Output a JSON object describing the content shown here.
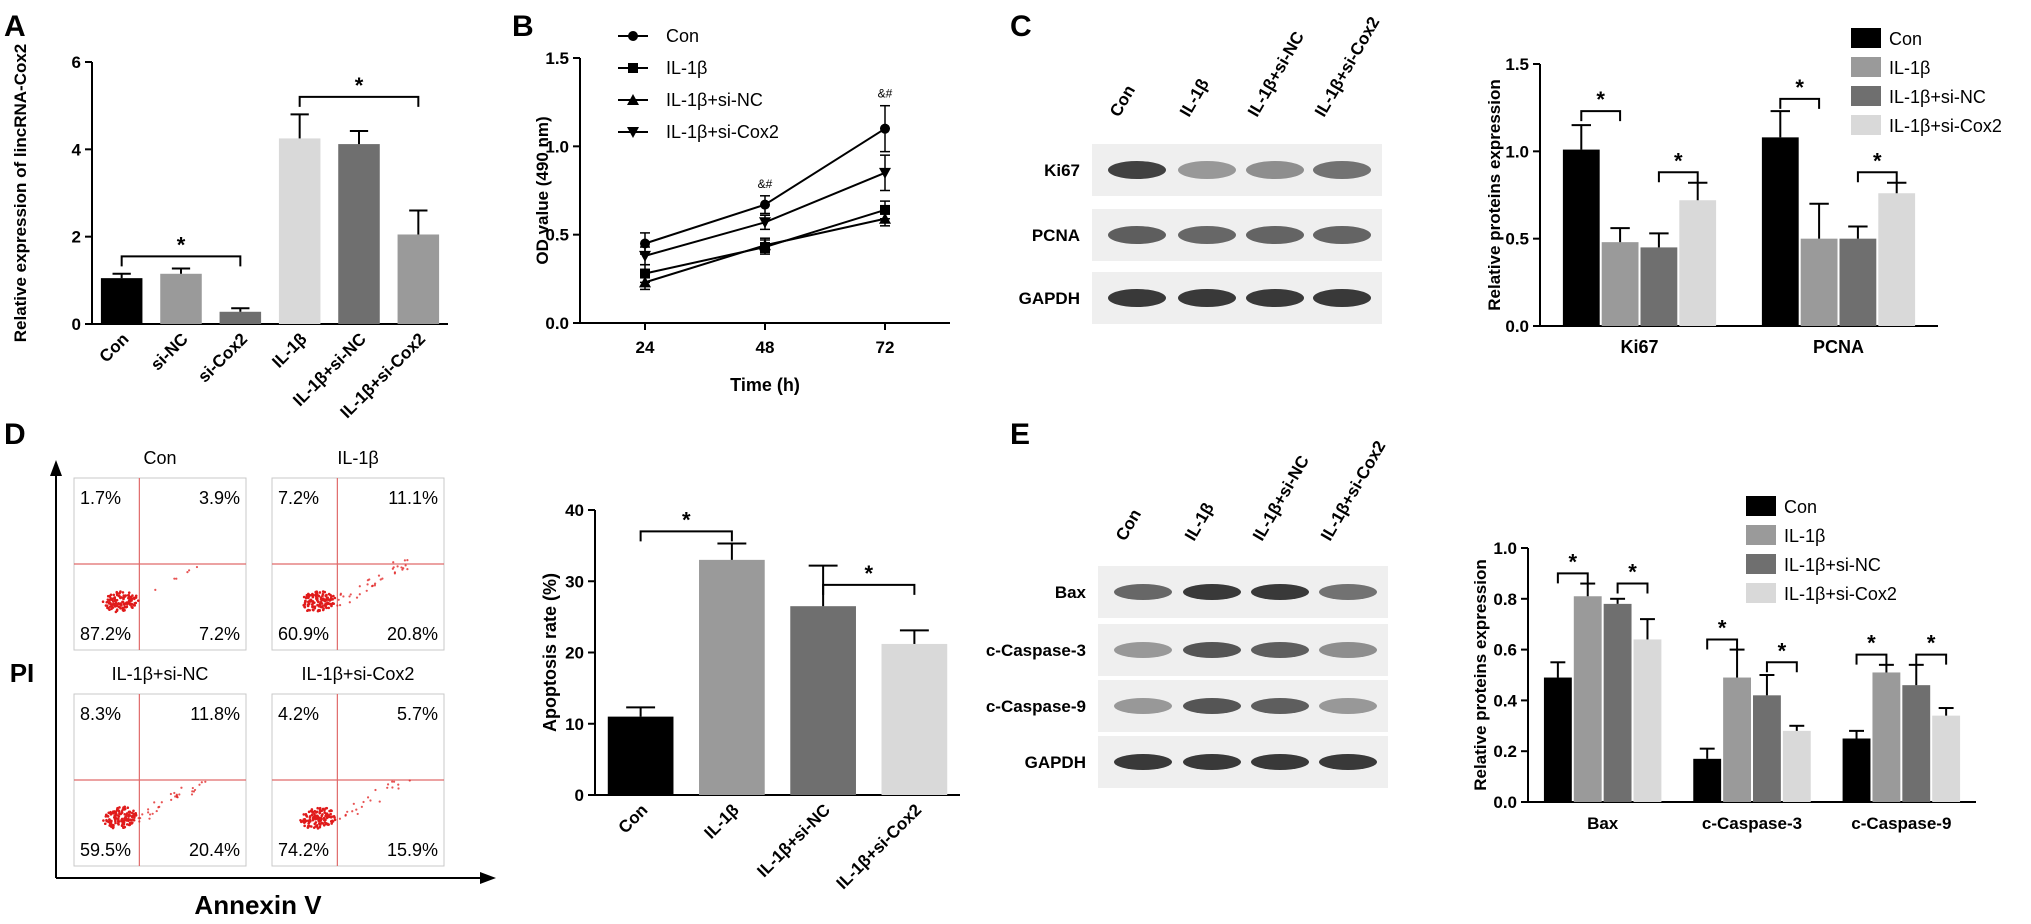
{
  "panel_labels": [
    "A",
    "B",
    "C",
    "D",
    "E"
  ],
  "colors": {
    "black": "#000000",
    "mid": "#9a9a9a",
    "dark": "#6f6f6f",
    "light": "#d9d9d9",
    "gel": "#efefef",
    "band": "#2e2e2e",
    "flow_line": "#e06a6a",
    "flow_dot": "#e01b1b"
  },
  "chart_data": [
    {
      "id": "A",
      "type": "bar",
      "ylabel": "Relative expression of lincRNA-Cox2",
      "categories": [
        "Con",
        "si-NC",
        "si-Cox2",
        "IL-1β",
        "IL-1β+si-NC",
        "IL-1β+si-Cox2"
      ],
      "values": [
        1.05,
        1.15,
        0.28,
        4.25,
        4.12,
        2.05
      ],
      "errors": [
        0.1,
        0.12,
        0.08,
        0.55,
        0.3,
        0.55
      ],
      "bar_colors": [
        "#000000",
        "#9a9a9a",
        "#6f6f6f",
        "#d9d9d9",
        "#6f6f6f",
        "#9a9a9a"
      ],
      "ylim": [
        0,
        6
      ],
      "yticks": [
        "0",
        "2",
        "4",
        "6"
      ],
      "sig": [
        {
          "from": 0,
          "to": 2,
          "y": 1.55,
          "label": "*"
        },
        {
          "from": 3,
          "to": 5,
          "y": 5.2,
          "label": "*"
        }
      ]
    },
    {
      "id": "B",
      "type": "line",
      "xlabel": "Time (h)",
      "ylabel": "OD value (490 nm)",
      "x": [
        "24",
        "48",
        "72"
      ],
      "series": [
        {
          "name": "Con",
          "marker": "circle",
          "values": [
            0.45,
            0.67,
            1.1
          ],
          "errors": [
            0.06,
            0.05,
            0.13
          ]
        },
        {
          "name": "IL-1β",
          "marker": "square",
          "values": [
            0.28,
            0.43,
            0.64
          ],
          "errors": [
            0.05,
            0.04,
            0.05
          ]
        },
        {
          "name": "IL-1β+si-NC",
          "marker": "triangle-up",
          "values": [
            0.23,
            0.44,
            0.59
          ],
          "errors": [
            0.04,
            0.04,
            0.04
          ]
        },
        {
          "name": "IL-1β+si-Cox2",
          "marker": "triangle-down",
          "values": [
            0.38,
            0.57,
            0.85
          ],
          "errors": [
            0.05,
            0.04,
            0.1
          ]
        }
      ],
      "ylim": [
        0,
        1.5
      ],
      "yticks": [
        "0.0",
        "0.5",
        "1.0",
        "1.5"
      ],
      "annotations": [
        {
          "x_index": 1,
          "label": "&#"
        },
        {
          "x_index": 2,
          "label": "&#"
        }
      ],
      "legend": "top-left"
    },
    {
      "id": "C",
      "type": "bar",
      "ylabel": "Relative proteins expression",
      "categories": [
        "Ki67",
        "PCNA"
      ],
      "series": [
        {
          "name": "Con",
          "color": "#000000",
          "values": [
            1.01,
            1.08
          ],
          "errors": [
            0.14,
            0.15
          ]
        },
        {
          "name": "IL-1β",
          "color": "#9a9a9a",
          "values": [
            0.48,
            0.5
          ],
          "errors": [
            0.08,
            0.2
          ]
        },
        {
          "name": "IL-1β+si-NC",
          "color": "#6f6f6f",
          "values": [
            0.45,
            0.5
          ],
          "errors": [
            0.08,
            0.07
          ]
        },
        {
          "name": "IL-1β+si-Cox2",
          "color": "#d9d9d9",
          "values": [
            0.72,
            0.76
          ],
          "errors": [
            0.1,
            0.06
          ]
        }
      ],
      "ylim": [
        0,
        1.5
      ],
      "yticks": [
        "0.0",
        "0.5",
        "1.0",
        "1.5"
      ],
      "legend": "top-right",
      "sig": [
        {
          "cat": 0,
          "s1": 0,
          "s2": 1,
          "y": 1.23,
          "label": "*"
        },
        {
          "cat": 0,
          "s1": 2,
          "s2": 3,
          "y": 0.88,
          "label": "*"
        },
        {
          "cat": 1,
          "s1": 0,
          "s2": 1,
          "y": 1.3,
          "label": "*"
        },
        {
          "cat": 1,
          "s1": 2,
          "s2": 3,
          "y": 0.88,
          "label": "*"
        }
      ]
    },
    {
      "id": "D",
      "type": "bar",
      "ylabel": "Apoptosis rate (%)",
      "categories": [
        "Con",
        "IL-1β",
        "IL-1β+si-NC",
        "IL-1β+si-Cox2"
      ],
      "values": [
        11,
        33,
        26.5,
        21.2
      ],
      "errors": [
        1.3,
        2.3,
        5.7,
        1.9
      ],
      "bar_colors": [
        "#000000",
        "#9a9a9a",
        "#6f6f6f",
        "#d9d9d9"
      ],
      "ylim": [
        0,
        40
      ],
      "yticks": [
        "0",
        "10",
        "20",
        "30",
        "40"
      ],
      "sig": [
        {
          "from": 0,
          "to": 1,
          "y": 37,
          "label": "*"
        },
        {
          "from": 2,
          "to": 3,
          "y": 29.5,
          "label": "*"
        }
      ]
    },
    {
      "id": "E",
      "type": "bar",
      "ylabel": "Relative proteins expression",
      "categories": [
        "Bax",
        "c-Caspase-3",
        "c-Caspase-9"
      ],
      "series": [
        {
          "name": "Con",
          "color": "#000000",
          "values": [
            0.49,
            0.17,
            0.25
          ],
          "errors": [
            0.06,
            0.04,
            0.03
          ]
        },
        {
          "name": "IL-1β",
          "color": "#9a9a9a",
          "values": [
            0.81,
            0.49,
            0.51
          ],
          "errors": [
            0.05,
            0.11,
            0.03
          ]
        },
        {
          "name": "IL-1β+si-NC",
          "color": "#6f6f6f",
          "values": [
            0.78,
            0.42,
            0.46
          ],
          "errors": [
            0.02,
            0.08,
            0.08
          ]
        },
        {
          "name": "IL-1β+si-Cox2",
          "color": "#d9d9d9",
          "values": [
            0.64,
            0.28,
            0.34
          ],
          "errors": [
            0.08,
            0.02,
            0.03
          ]
        }
      ],
      "ylim": [
        0,
        1.0
      ],
      "yticks": [
        "0.0",
        "0.2",
        "0.4",
        "0.6",
        "0.8",
        "1.0"
      ],
      "legend": "top-right",
      "sig": [
        {
          "cat": 0,
          "s1": 0,
          "s2": 1,
          "y": 0.9,
          "label": "*"
        },
        {
          "cat": 0,
          "s1": 2,
          "s2": 3,
          "y": 0.86,
          "label": "*"
        },
        {
          "cat": 1,
          "s1": 0,
          "s2": 1,
          "y": 0.64,
          "label": "*"
        },
        {
          "cat": 1,
          "s1": 2,
          "s2": 3,
          "y": 0.55,
          "label": "*"
        },
        {
          "cat": 2,
          "s1": 0,
          "s2": 1,
          "y": 0.58,
          "label": "*"
        },
        {
          "cat": 2,
          "s1": 2,
          "s2": 3,
          "y": 0.58,
          "label": "*"
        }
      ]
    }
  ],
  "western_C": {
    "lanes": [
      "Con",
      "IL-1β",
      "IL-1β+si-NC",
      "IL-1β+si-Cox2"
    ],
    "rows": [
      {
        "label": "Ki67",
        "intensity": [
          0.9,
          0.45,
          0.5,
          0.65
        ]
      },
      {
        "label": "PCNA",
        "intensity": [
          0.75,
          0.7,
          0.72,
          0.72
        ]
      },
      {
        "label": "GAPDH",
        "intensity": [
          0.95,
          0.95,
          0.95,
          0.95
        ]
      }
    ]
  },
  "western_E": {
    "lanes": [
      "Con",
      "IL-1β",
      "IL-1β+si-NC",
      "IL-1β+si-Cox2"
    ],
    "rows": [
      {
        "label": "Bax",
        "intensity": [
          0.7,
          0.95,
          0.95,
          0.65
        ]
      },
      {
        "label": "c-Caspase-3",
        "intensity": [
          0.45,
          0.8,
          0.75,
          0.5
        ]
      },
      {
        "label": "c-Caspase-9",
        "intensity": [
          0.45,
          0.8,
          0.75,
          0.45
        ]
      },
      {
        "label": "GAPDH",
        "intensity": [
          0.95,
          0.95,
          0.95,
          0.95
        ]
      }
    ]
  },
  "flow_D": {
    "y_axis_label": "PI",
    "x_axis_label": "Annexin V",
    "plots": [
      {
        "title": "Con",
        "q": [
          "1.7%",
          "3.9%",
          "87.2%",
          "7.2%"
        ],
        "spread": 0.15
      },
      {
        "title": "IL-1β",
        "q": [
          "7.2%",
          "11.1%",
          "60.9%",
          "20.8%"
        ],
        "spread": 0.9
      },
      {
        "title": "IL-1β+si-NC",
        "q": [
          "8.3%",
          "11.8%",
          "59.5%",
          "20.4%"
        ],
        "spread": 0.8
      },
      {
        "title": "IL-1β+si-Cox2",
        "q": [
          "4.2%",
          "5.7%",
          "74.2%",
          "15.9%"
        ],
        "spread": 0.55
      }
    ]
  }
}
